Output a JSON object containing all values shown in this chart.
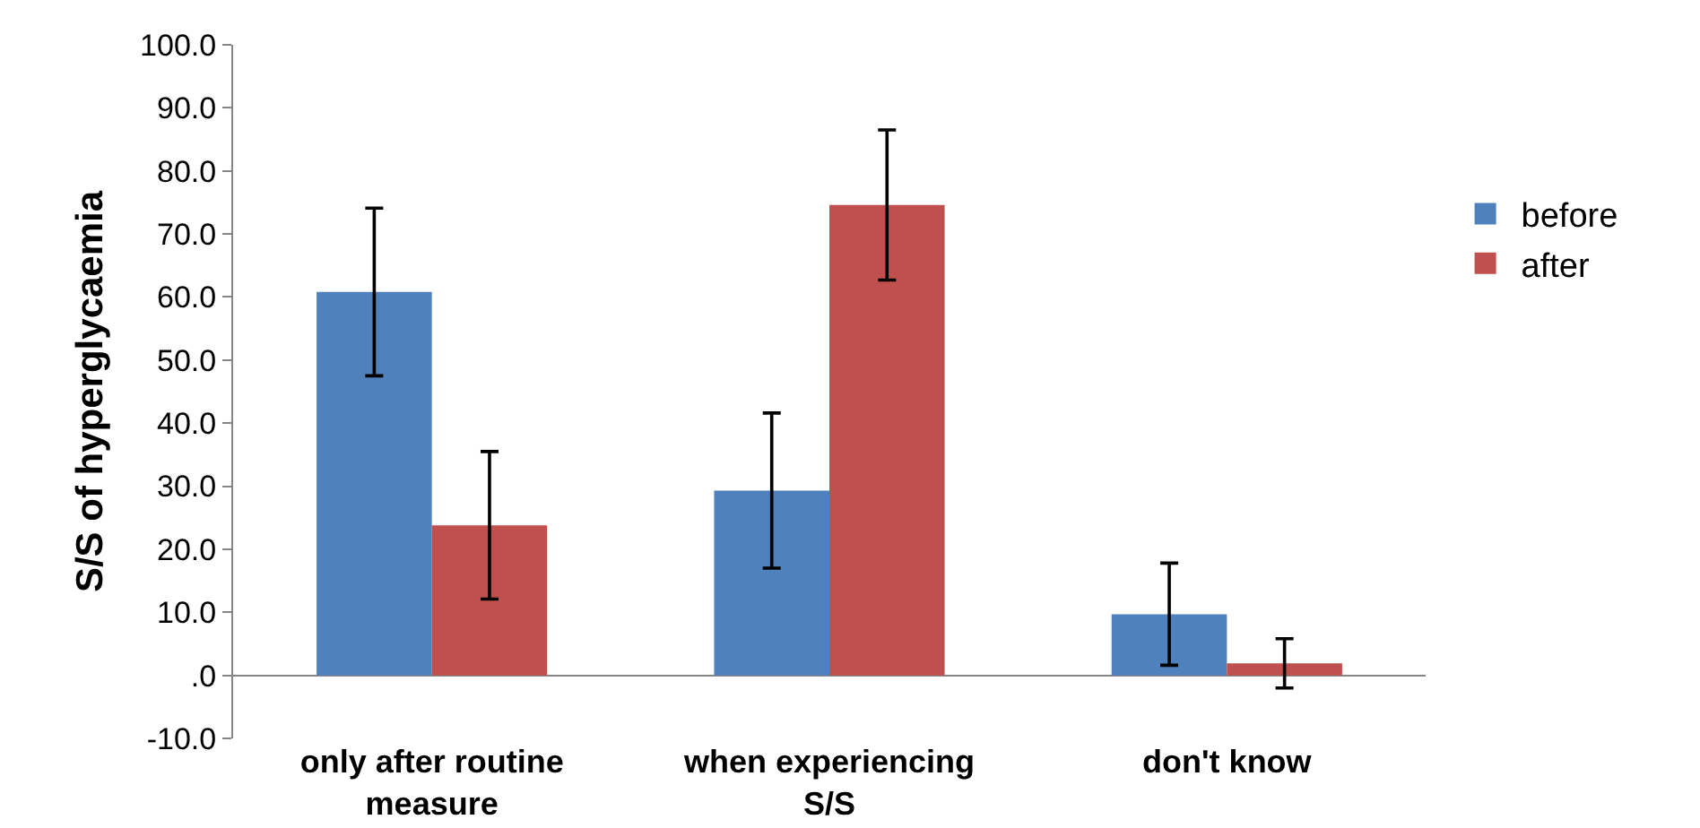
{
  "chart_data": {
    "type": "bar",
    "ylabel": "S/S of hyperglycaemia",
    "categories": [
      "only after routine measure",
      "when experiencing S/S",
      "don't know"
    ],
    "series": [
      {
        "name": "before",
        "color": "#4f81bd",
        "values": [
          60.8,
          29.3,
          9.7
        ],
        "errors": [
          13.3,
          12.3,
          8.1
        ]
      },
      {
        "name": "after",
        "color": "#c0504d",
        "values": [
          23.8,
          74.6,
          1.9
        ],
        "errors": [
          11.7,
          11.9,
          3.9
        ]
      }
    ],
    "ylim": [
      -10,
      100
    ],
    "yticks": [
      {
        "value": -10,
        "label": "-10.0"
      },
      {
        "value": 0,
        "label": ".0"
      },
      {
        "value": 10,
        "label": "10.0"
      },
      {
        "value": 20,
        "label": "20.0"
      },
      {
        "value": 30,
        "label": "30.0"
      },
      {
        "value": 40,
        "label": "40.0"
      },
      {
        "value": 50,
        "label": "50.0"
      },
      {
        "value": 60,
        "label": "60.0"
      },
      {
        "value": 70,
        "label": "70.0"
      },
      {
        "value": 80,
        "label": "80.0"
      },
      {
        "value": 90,
        "label": "90.0"
      },
      {
        "value": 100,
        "label": "100.0"
      }
    ],
    "grid": false,
    "legend": "right"
  }
}
